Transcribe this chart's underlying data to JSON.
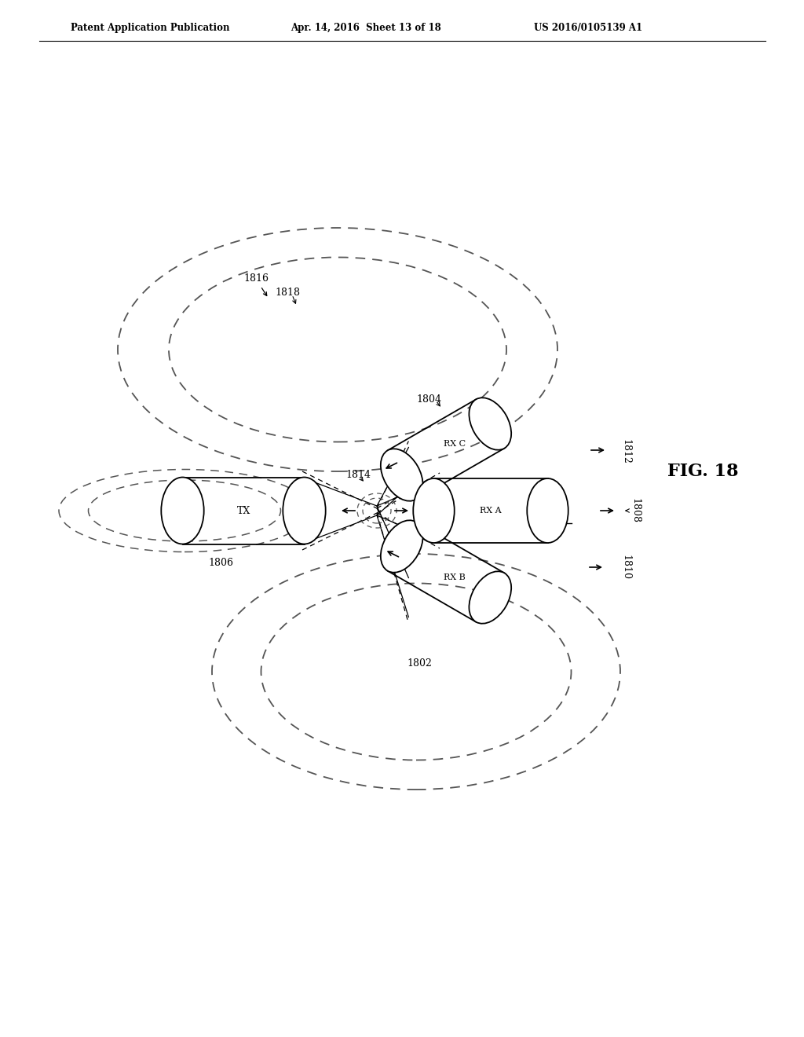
{
  "bg_color": "#ffffff",
  "line_color": "#000000",
  "dashed_color": "#555555",
  "header_left": "Patent Application Publication",
  "header_mid": "Apr. 14, 2016  Sheet 13 of 18",
  "header_right": "US 2016/0105139 A1",
  "fig_label": "FIG. 18"
}
